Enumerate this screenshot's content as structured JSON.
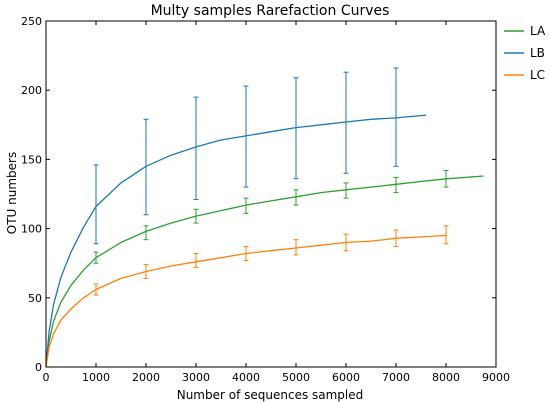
{
  "chart_data": {
    "type": "line",
    "title": "Multy samples Rarefaction Curves",
    "xlabel": "Number of sequences sampled",
    "ylabel": "OTU numbers",
    "xlim": [
      0,
      9000
    ],
    "ylim": [
      0,
      250
    ],
    "xticks": [
      "0",
      "1000",
      "2000",
      "3000",
      "4000",
      "5000",
      "6000",
      "7000",
      "8000",
      "9000"
    ],
    "yticks": [
      "0",
      "50",
      "100",
      "150",
      "200",
      "250"
    ],
    "grid": false,
    "legend_position": "outside-right",
    "series": [
      {
        "name": "LA",
        "color": "#2ca02c",
        "curve": {
          "x": [
            0,
            60,
            150,
            300,
            500,
            750,
            1000,
            1500,
            2000,
            2500,
            3000,
            3500,
            4000,
            4500,
            5000,
            5500,
            6000,
            6500,
            7000,
            7500,
            8000,
            8750
          ],
          "y": [
            0,
            18,
            33,
            47,
            59,
            70,
            79,
            90,
            98,
            104,
            109,
            113,
            117,
            120,
            123,
            126,
            128,
            130,
            132,
            134,
            136,
            138
          ]
        },
        "error_bars": [
          {
            "x": 1000,
            "y": 79,
            "low": 75,
            "high": 83
          },
          {
            "x": 2000,
            "y": 97,
            "low": 92,
            "high": 102
          },
          {
            "x": 3000,
            "y": 109,
            "low": 104,
            "high": 114
          },
          {
            "x": 4000,
            "y": 117,
            "low": 111,
            "high": 122
          },
          {
            "x": 5000,
            "y": 123,
            "low": 117,
            "high": 128
          },
          {
            "x": 6000,
            "y": 128,
            "low": 122,
            "high": 133
          },
          {
            "x": 7000,
            "y": 132,
            "low": 126,
            "high": 137
          },
          {
            "x": 8000,
            "y": 136,
            "low": 130,
            "high": 142
          }
        ]
      },
      {
        "name": "LB",
        "color": "#1f77b4",
        "curve": {
          "x": [
            0,
            60,
            150,
            300,
            500,
            750,
            1000,
            1500,
            2000,
            2500,
            3000,
            3500,
            4000,
            4500,
            5000,
            5500,
            6000,
            6500,
            7000,
            7600
          ],
          "y": [
            0,
            25,
            45,
            65,
            83,
            101,
            116,
            133,
            145,
            153,
            159,
            164,
            167,
            170,
            173,
            175,
            177,
            179,
            180,
            182
          ]
        },
        "error_bars": [
          {
            "x": 1000,
            "y": 116,
            "low": 89,
            "high": 146
          },
          {
            "x": 2000,
            "y": 145,
            "low": 110,
            "high": 179
          },
          {
            "x": 3000,
            "y": 159,
            "low": 121,
            "high": 195
          },
          {
            "x": 4000,
            "y": 167,
            "low": 130,
            "high": 203
          },
          {
            "x": 5000,
            "y": 173,
            "low": 136,
            "high": 209
          },
          {
            "x": 6000,
            "y": 177,
            "low": 140,
            "high": 213
          },
          {
            "x": 7000,
            "y": 180,
            "low": 145,
            "high": 216
          }
        ]
      },
      {
        "name": "LC",
        "color": "#ff7f0e",
        "curve": {
          "x": [
            0,
            60,
            150,
            300,
            500,
            750,
            1000,
            1500,
            2000,
            2500,
            3000,
            3500,
            4000,
            4500,
            5000,
            5500,
            6000,
            6500,
            7000,
            7500,
            8000
          ],
          "y": [
            0,
            14,
            24,
            34,
            42,
            50,
            56,
            64,
            69,
            73,
            76,
            79,
            82,
            84,
            86,
            88,
            90,
            91,
            93,
            94,
            95
          ]
        },
        "error_bars": [
          {
            "x": 1000,
            "y": 56,
            "low": 52,
            "high": 60
          },
          {
            "x": 2000,
            "y": 69,
            "low": 64,
            "high": 74
          },
          {
            "x": 3000,
            "y": 77,
            "low": 72,
            "high": 82
          },
          {
            "x": 4000,
            "y": 82,
            "low": 77,
            "high": 87
          },
          {
            "x": 5000,
            "y": 86,
            "low": 81,
            "high": 92
          },
          {
            "x": 6000,
            "y": 90,
            "low": 84,
            "high": 96
          },
          {
            "x": 7000,
            "y": 93,
            "low": 87,
            "high": 99
          },
          {
            "x": 8000,
            "y": 95,
            "low": 89,
            "high": 102
          }
        ]
      }
    ]
  }
}
